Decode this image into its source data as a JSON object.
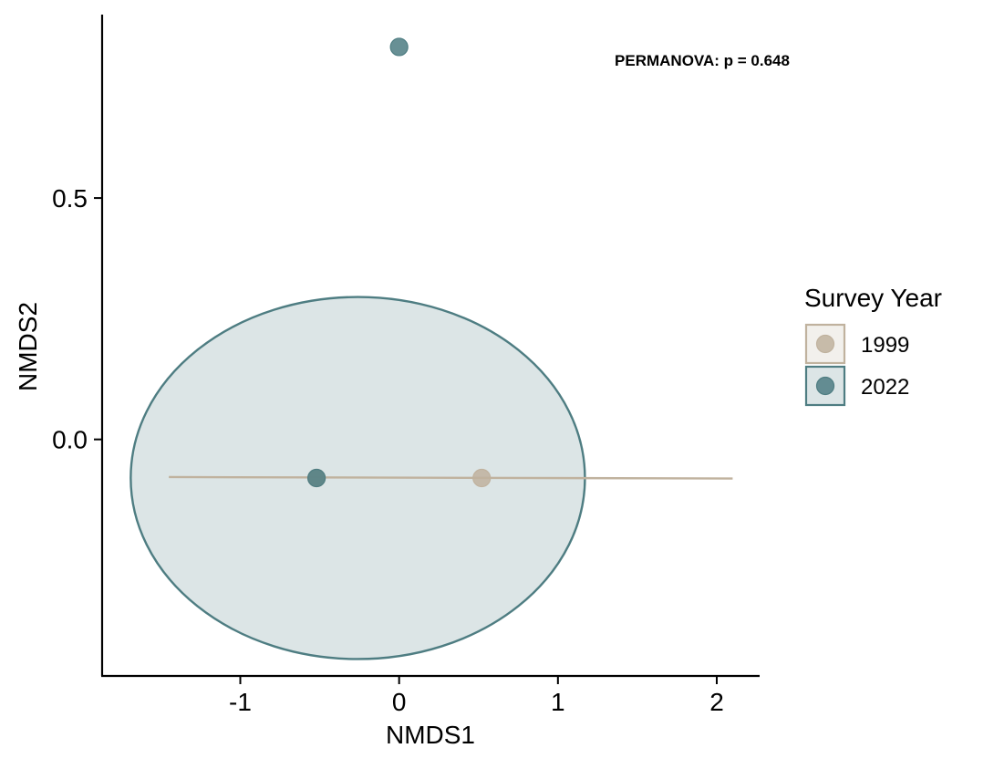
{
  "chart_data": {
    "type": "scatter",
    "title": "",
    "xlabel": "NMDS1",
    "ylabel": "NMDS2",
    "xlim": [
      -1.87,
      2.27
    ],
    "ylim": [
      -0.49,
      0.88
    ],
    "xticks": [
      -1,
      0,
      1,
      2
    ],
    "yticks": [
      0.0,
      0.5
    ],
    "xtick_labels": [
      "-1",
      "0",
      "1",
      "2"
    ],
    "ytick_labels": [
      "0.0",
      "0.5"
    ],
    "grid": false,
    "legend_position": "right",
    "legend_title": "Survey Year",
    "annotation": "PERMANOVA: p = 0.648",
    "series": [
      {
        "name": "1999",
        "color": "#C0B29E",
        "points": [
          {
            "x": -0.52,
            "y": -0.08
          },
          {
            "x": 0.52,
            "y": -0.08
          }
        ],
        "segment": {
          "x1": -1.45,
          "y1": -0.078,
          "x2": 2.1,
          "y2": -0.081
        }
      },
      {
        "name": "2022",
        "color": "#4E7D82",
        "points": [
          {
            "x": 0.0,
            "y": 0.813
          },
          {
            "x": -0.52,
            "y": -0.08
          }
        ],
        "ellipse": {
          "cx": -0.26,
          "cy": -0.08,
          "rx": 1.43,
          "ry": 0.375,
          "rotation_deg": 0
        }
      }
    ]
  }
}
